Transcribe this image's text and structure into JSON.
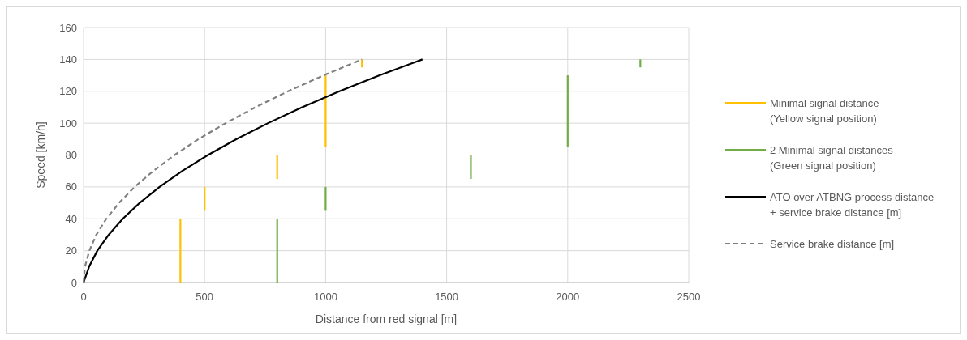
{
  "chart_data": {
    "type": "line",
    "xlabel": "Distance from red signal [m]",
    "ylabel": "Speed [km/h]",
    "xlim": [
      0,
      2500
    ],
    "xticks": [
      0,
      500,
      1000,
      1500,
      2000,
      2500
    ],
    "ylim": [
      0,
      160
    ],
    "yticks": [
      0,
      20,
      40,
      60,
      80,
      100,
      120,
      140,
      160
    ],
    "grid": true,
    "legend": "right",
    "series": [
      {
        "name": "Minimal signal distance\n(Yellow signal position)",
        "color": "#ffc000",
        "x": [
          400,
          400
        ],
        "values": [
          0,
          40
        ]
      },
      {
        "color": "#ffc000",
        "x": [
          500,
          500
        ],
        "values": [
          45,
          60
        ]
      },
      {
        "color": "#ffc000",
        "x": [
          800,
          800
        ],
        "values": [
          65,
          80
        ]
      },
      {
        "color": "#ffc000",
        "x": [
          1000,
          1000
        ],
        "values": [
          85,
          130
        ]
      },
      {
        "color": "#ffc000",
        "x": [
          1150,
          1150
        ],
        "values": [
          135,
          140
        ]
      },
      {
        "name": "2 Minimal signal distances\n(Green signal position)",
        "color": "#70ad47",
        "x": [
          800,
          800
        ],
        "values": [
          0,
          40
        ]
      },
      {
        "color": "#70ad47",
        "x": [
          1000,
          1000
        ],
        "values": [
          45,
          60
        ]
      },
      {
        "color": "#70ad47",
        "x": [
          1600,
          1600
        ],
        "values": [
          65,
          80
        ]
      },
      {
        "color": "#70ad47",
        "x": [
          2000,
          2000
        ],
        "values": [
          85,
          130
        ]
      },
      {
        "color": "#70ad47",
        "x": [
          2300,
          2300
        ],
        "values": [
          135,
          140
        ]
      },
      {
        "name": "ATO over ATBNG process distance\n+ service brake distance [m]",
        "color": "#000000",
        "x": [
          0,
          23,
          57,
          104,
          162,
          232,
          314,
          408,
          514,
          632,
          762,
          903,
          1057,
          1223,
          1400
        ],
        "values": [
          0,
          10,
          20,
          30,
          40,
          50,
          60,
          70,
          80,
          90,
          100,
          110,
          120,
          130,
          140
        ]
      },
      {
        "name": "Service brake distance [m]",
        "color": "#808080",
        "line_style": "dashed",
        "x": [
          0,
          6,
          24,
          53,
          94,
          147,
          211,
          288,
          376,
          475,
          587,
          710,
          845,
          992,
          1150
        ],
        "values": [
          0,
          10,
          20,
          30,
          40,
          50,
          60,
          70,
          80,
          90,
          100,
          110,
          120,
          130,
          140
        ]
      }
    ]
  }
}
